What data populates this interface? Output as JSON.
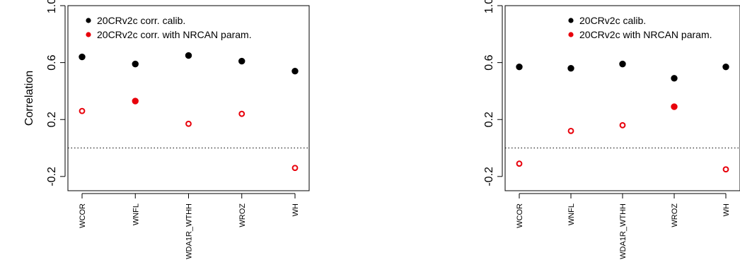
{
  "chart_data": [
    {
      "type": "scatter",
      "title": "",
      "xlabel": "",
      "ylabel": "Correlation",
      "ylim": [
        -0.3,
        1.0
      ],
      "yticks": [
        "-0.2",
        "0.2",
        "0.6",
        "1.0"
      ],
      "reference_line": 0,
      "categories": [
        "WCOR",
        "WNFL",
        "WDA1R_WTHH",
        "WROZ",
        "WH"
      ],
      "legend_position": "top",
      "series": [
        {
          "name": "20CRv2c corr. calib.",
          "color": "#000000",
          "values": [
            0.64,
            0.59,
            0.65,
            0.61,
            0.54
          ],
          "filled": [
            true,
            true,
            true,
            true,
            true
          ]
        },
        {
          "name": "20CRv2c corr. with NRCAN param.",
          "color": "#e8000b",
          "values": [
            0.26,
            0.33,
            0.17,
            0.24,
            -0.14
          ],
          "filled": [
            false,
            true,
            false,
            false,
            false
          ]
        }
      ]
    },
    {
      "type": "scatter",
      "title": "",
      "xlabel": "",
      "ylabel": "",
      "ylim": [
        -0.3,
        1.0
      ],
      "yticks": [
        "-0.2",
        "0.2",
        "0.6",
        "1.0"
      ],
      "reference_line": 0,
      "categories": [
        "WCOR",
        "WNFL",
        "WDA1R_WTHH",
        "WROZ",
        "WH"
      ],
      "legend_position": "top-right",
      "series": [
        {
          "name": "20CRv2c calib.",
          "color": "#000000",
          "values": [
            0.57,
            0.56,
            0.59,
            0.49,
            0.57
          ],
          "filled": [
            true,
            true,
            true,
            true,
            true
          ]
        },
        {
          "name": "20CRv2c with NRCAN param.",
          "color": "#e8000b",
          "values": [
            -0.11,
            0.12,
            0.16,
            0.29,
            -0.15
          ],
          "filled": [
            false,
            false,
            false,
            true,
            false
          ]
        }
      ]
    }
  ]
}
